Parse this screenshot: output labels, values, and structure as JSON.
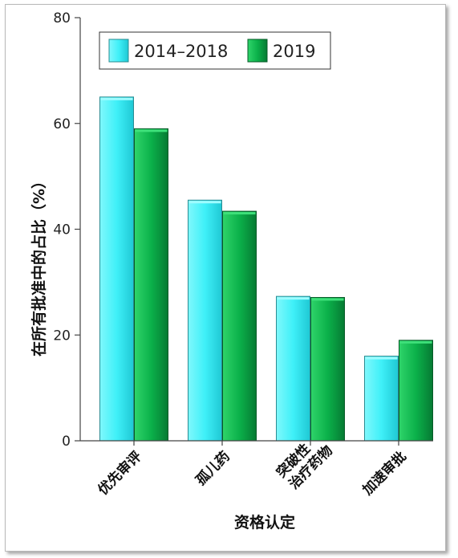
{
  "chart_data": {
    "type": "bar",
    "categories": [
      [
        "优先审评"
      ],
      [
        "孤儿药"
      ],
      [
        "突破性",
        "治疗药物"
      ],
      [
        "加速审批"
      ]
    ],
    "series": [
      {
        "name": "2014–2018",
        "values": [
          65,
          45.5,
          27.3,
          16
        ],
        "color": "#3ff0f8"
      },
      {
        "name": "2019",
        "values": [
          59,
          43.4,
          27.1,
          19
        ],
        "color": "#0bb14a"
      }
    ],
    "xlabel": "资格认定",
    "ylabel": "在所有批准中的占比（%）",
    "ylim": [
      0,
      80
    ],
    "yticks": [
      0,
      20,
      40,
      60,
      80
    ],
    "legend_position": "top-left",
    "grid": false
  }
}
